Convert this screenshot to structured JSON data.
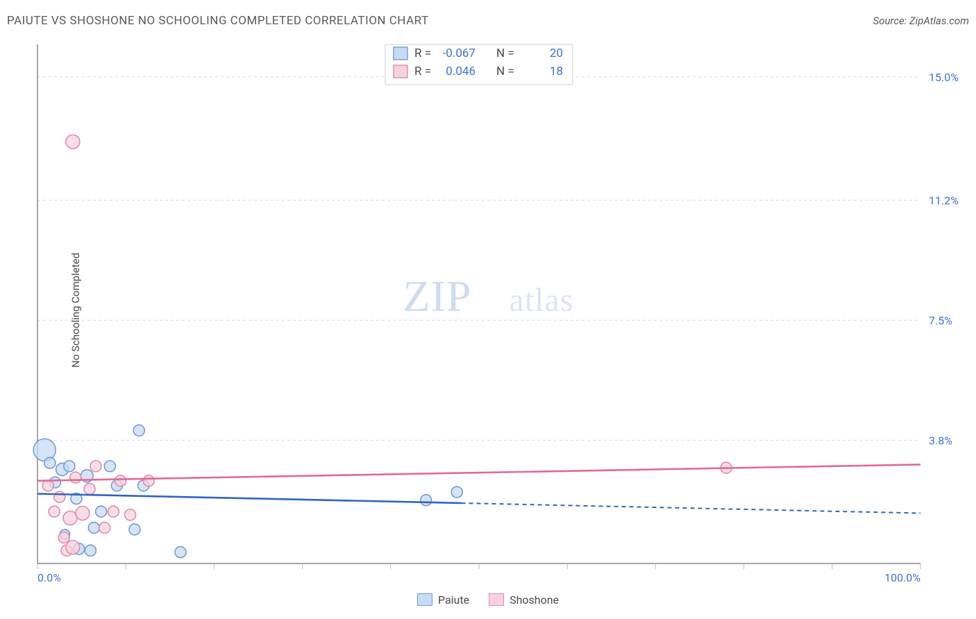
{
  "title": "PAIUTE VS SHOSHONE NO SCHOOLING COMPLETED CORRELATION CHART",
  "source": "Source: ZipAtlas.com",
  "ylabel": "No Schooling Completed",
  "watermark": {
    "a": "ZIP",
    "b": "atlas"
  },
  "chart": {
    "type": "scatter",
    "background_color": "#ffffff",
    "grid_color": "#d9d9d9",
    "axis_color": "#888888",
    "xlim": [
      0,
      100
    ],
    "ylim": [
      0,
      16
    ],
    "y_ticks": [
      {
        "v": 3.8,
        "label": "3.8%"
      },
      {
        "v": 7.5,
        "label": "7.5%"
      },
      {
        "v": 11.2,
        "label": "11.2%"
      },
      {
        "v": 15.0,
        "label": "15.0%"
      }
    ],
    "x_axis_labels": {
      "min": "0.0%",
      "max": "100.0%"
    },
    "x_tick_positions": [
      0,
      10,
      20,
      30,
      40,
      50,
      60,
      70,
      80,
      90,
      100
    ],
    "series": [
      {
        "key": "paiute",
        "label": "Paiute",
        "fill": "#c8dbf5",
        "stroke": "#6f9bdc",
        "trend_color": "#2f64c0",
        "stroke_width": 1.6,
        "R": "-0.067",
        "N": "20",
        "trend": {
          "y_at_x0": 2.15,
          "y_at_x100": 1.55,
          "solid_until_x": 48
        },
        "points": [
          {
            "x": 0.8,
            "y": 3.5,
            "r": 16
          },
          {
            "x": 1.4,
            "y": 3.1,
            "r": 8
          },
          {
            "x": 2.0,
            "y": 2.5,
            "r": 8
          },
          {
            "x": 2.8,
            "y": 2.9,
            "r": 9
          },
          {
            "x": 3.6,
            "y": 3.0,
            "r": 8
          },
          {
            "x": 4.4,
            "y": 2.0,
            "r": 8
          },
          {
            "x": 5.6,
            "y": 2.7,
            "r": 9
          },
          {
            "x": 6.4,
            "y": 1.1,
            "r": 8
          },
          {
            "x": 7.2,
            "y": 1.6,
            "r": 8
          },
          {
            "x": 8.2,
            "y": 3.0,
            "r": 8
          },
          {
            "x": 9.0,
            "y": 2.4,
            "r": 8
          },
          {
            "x": 4.7,
            "y": 0.45,
            "r": 8
          },
          {
            "x": 6.0,
            "y": 0.4,
            "r": 8
          },
          {
            "x": 3.1,
            "y": 0.9,
            "r": 7
          },
          {
            "x": 11.0,
            "y": 1.05,
            "r": 8
          },
          {
            "x": 11.5,
            "y": 4.1,
            "r": 8
          },
          {
            "x": 12.0,
            "y": 2.4,
            "r": 8
          },
          {
            "x": 16.2,
            "y": 0.35,
            "r": 8
          },
          {
            "x": 44.0,
            "y": 1.95,
            "r": 8
          },
          {
            "x": 47.5,
            "y": 2.2,
            "r": 8
          }
        ]
      },
      {
        "key": "shoshone",
        "label": "Shoshone",
        "fill": "#f7d3dd",
        "stroke": "#e48aa8",
        "trend_color": "#e06a94",
        "stroke_width": 1.6,
        "R": "0.046",
        "N": "18",
        "trend": {
          "y_at_x0": 2.55,
          "y_at_x100": 3.05,
          "solid_until_x": 100
        },
        "points": [
          {
            "x": 4.0,
            "y": 13.0,
            "r": 10
          },
          {
            "x": 1.2,
            "y": 2.4,
            "r": 8
          },
          {
            "x": 1.9,
            "y": 1.6,
            "r": 8
          },
          {
            "x": 2.5,
            "y": 2.05,
            "r": 8
          },
          {
            "x": 3.0,
            "y": 0.8,
            "r": 8
          },
          {
            "x": 3.7,
            "y": 1.4,
            "r": 10
          },
          {
            "x": 4.3,
            "y": 2.65,
            "r": 8
          },
          {
            "x": 5.1,
            "y": 1.55,
            "r": 10
          },
          {
            "x": 5.9,
            "y": 2.3,
            "r": 8
          },
          {
            "x": 6.6,
            "y": 3.0,
            "r": 8
          },
          {
            "x": 7.6,
            "y": 1.1,
            "r": 8
          },
          {
            "x": 8.6,
            "y": 1.6,
            "r": 8
          },
          {
            "x": 9.4,
            "y": 2.55,
            "r": 8
          },
          {
            "x": 3.3,
            "y": 0.4,
            "r": 8
          },
          {
            "x": 4.0,
            "y": 0.5,
            "r": 10
          },
          {
            "x": 10.5,
            "y": 1.5,
            "r": 8
          },
          {
            "x": 12.6,
            "y": 2.55,
            "r": 8
          },
          {
            "x": 78.0,
            "y": 2.95,
            "r": 8
          }
        ]
      }
    ],
    "legend_top": {
      "box_stroke": "#cfcfcf",
      "box_fill": "#ffffff"
    }
  }
}
